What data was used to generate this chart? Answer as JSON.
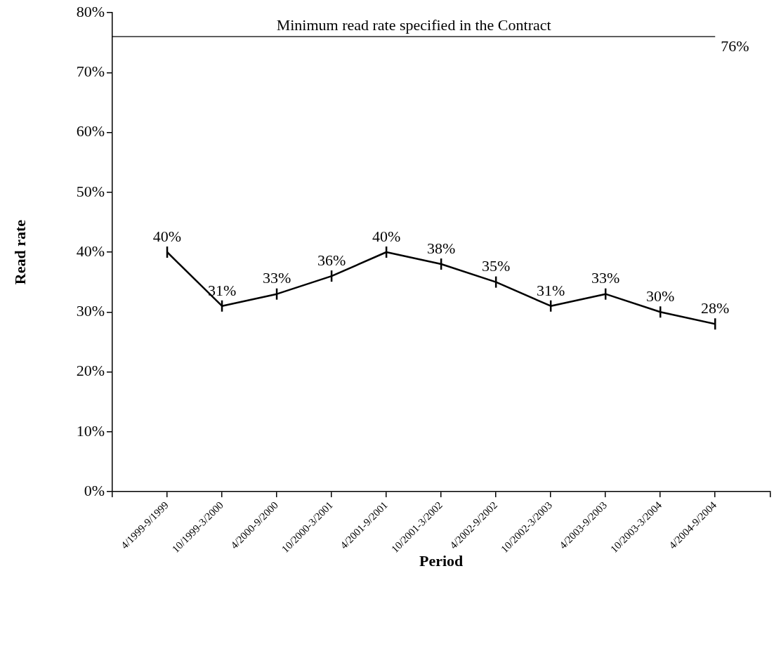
{
  "chart_data": {
    "type": "line",
    "xlabel": "Period",
    "ylabel": "Read rate",
    "categories": [
      "4/1999-9/1999",
      "10/1999-3/2000",
      "4/2000-9/2000",
      "10/2000-3/2001",
      "4/2001-9/2001",
      "10/2001-3/2002",
      "4/2002-9/2002",
      "10/2002-3/2003",
      "4/2003-9/2003",
      "10/2003-3/2004",
      "4/2004-9/2004"
    ],
    "series": [
      {
        "color": "#000000",
        "values": [
          40,
          31,
          33,
          36,
          40,
          38,
          35,
          31,
          33,
          30,
          28
        ],
        "value_labels": [
          "40%",
          "31%",
          "33%",
          "36%",
          "40%",
          "38%",
          "35%",
          "31%",
          "33%",
          "30%",
          "28%"
        ]
      }
    ],
    "ylim": [
      0,
      80
    ],
    "yticks": [
      {
        "value": 0,
        "label": "0%"
      },
      {
        "value": 10,
        "label": "10%"
      },
      {
        "value": 20,
        "label": "20%"
      },
      {
        "value": 30,
        "label": "30%"
      },
      {
        "value": 40,
        "label": "40%"
      },
      {
        "value": 50,
        "label": "50%"
      },
      {
        "value": 60,
        "label": "60%"
      },
      {
        "value": 70,
        "label": "70%"
      },
      {
        "value": 80,
        "label": "80%"
      }
    ],
    "ref_lines": [
      {
        "axis": "y",
        "value": 76,
        "label": "Minimum read rate specified in the Contract",
        "color": "#000000"
      }
    ],
    "annotations": [
      "76%"
    ],
    "grid": false,
    "legend": false,
    "line_style": "solid"
  }
}
